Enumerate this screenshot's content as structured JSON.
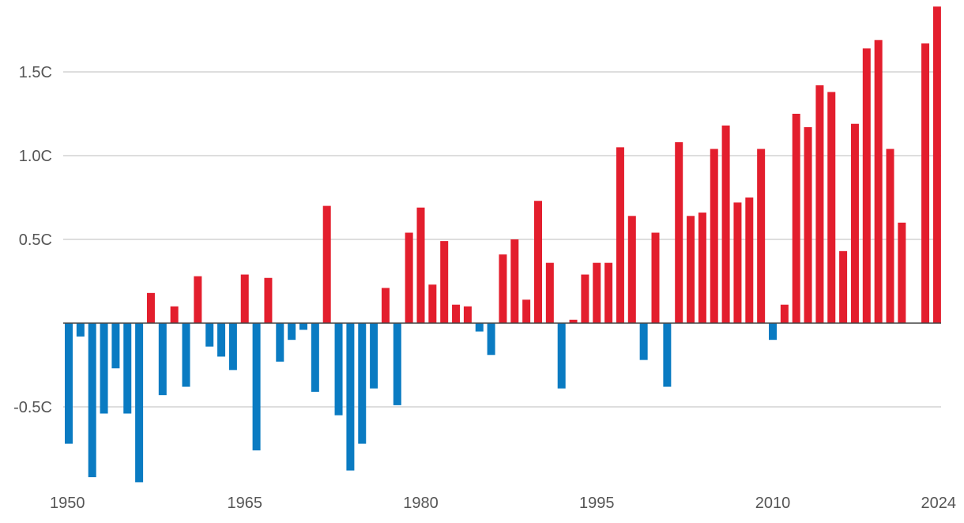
{
  "chart_data": {
    "type": "bar",
    "title": "",
    "xlabel": "",
    "ylabel": "",
    "ylim": [
      -0.95,
      1.9
    ],
    "grid": true,
    "legend": "none",
    "colors": {
      "positive": "#e31e2d",
      "negative": "#0a7bc2",
      "grid": "#d3d3d3",
      "zero_line": "#444444",
      "tick_text": "#555555"
    },
    "y_ticks": [
      {
        "value": -0.5,
        "label": "-0.5C"
      },
      {
        "value": 0.5,
        "label": "0.5C"
      },
      {
        "value": 1.0,
        "label": "1.0C"
      },
      {
        "value": 1.5,
        "label": "1.5C"
      }
    ],
    "x_ticks": [
      {
        "value": 1950,
        "label": "1950"
      },
      {
        "value": 1965,
        "label": "1965"
      },
      {
        "value": 1980,
        "label": "1980"
      },
      {
        "value": 1995,
        "label": "1995"
      },
      {
        "value": 2010,
        "label": "2010"
      },
      {
        "value": 2024,
        "label": "2024"
      }
    ],
    "x": [
      1950,
      1951,
      1952,
      1953,
      1954,
      1955,
      1956,
      1957,
      1958,
      1959,
      1960,
      1961,
      1962,
      1963,
      1964,
      1965,
      1966,
      1967,
      1968,
      1969,
      1970,
      1971,
      1972,
      1973,
      1974,
      1975,
      1976,
      1977,
      1978,
      1979,
      1980,
      1981,
      1982,
      1983,
      1984,
      1985,
      1986,
      1987,
      1988,
      1989,
      1990,
      1991,
      1992,
      1993,
      1994,
      1995,
      1996,
      1997,
      1998,
      1999,
      2000,
      2001,
      2002,
      2003,
      2004,
      2005,
      2006,
      2007,
      2008,
      2009,
      2010,
      2011,
      2012,
      2013,
      2014,
      2015,
      2016,
      2017,
      2018,
      2019,
      2020,
      2021,
      2022,
      2023,
      2024
    ],
    "values": [
      -0.72,
      -0.08,
      -0.92,
      -0.54,
      -0.27,
      -0.54,
      -0.95,
      0.18,
      -0.43,
      0.1,
      -0.38,
      0.28,
      -0.14,
      -0.2,
      -0.28,
      0.29,
      -0.76,
      0.27,
      -0.23,
      -0.1,
      -0.04,
      -0.41,
      0.7,
      -0.55,
      -0.88,
      -0.72,
      -0.39,
      0.21,
      -0.49,
      0.54,
      0.69,
      0.23,
      0.49,
      0.11,
      0.1,
      -0.05,
      -0.19,
      0.41,
      0.5,
      0.14,
      0.73,
      0.36,
      -0.39,
      0.02,
      0.29,
      0.36,
      0.36,
      1.05,
      0.64,
      -0.22,
      0.54,
      -0.38,
      1.08,
      0.64,
      0.66,
      1.04,
      1.18,
      0.72,
      0.75,
      1.04,
      -0.1,
      0.11,
      1.25,
      1.17,
      1.42,
      1.38,
      0.43,
      1.19,
      1.64,
      1.69,
      1.04,
      0.6,
      null,
      1.67,
      1.89
    ]
  }
}
